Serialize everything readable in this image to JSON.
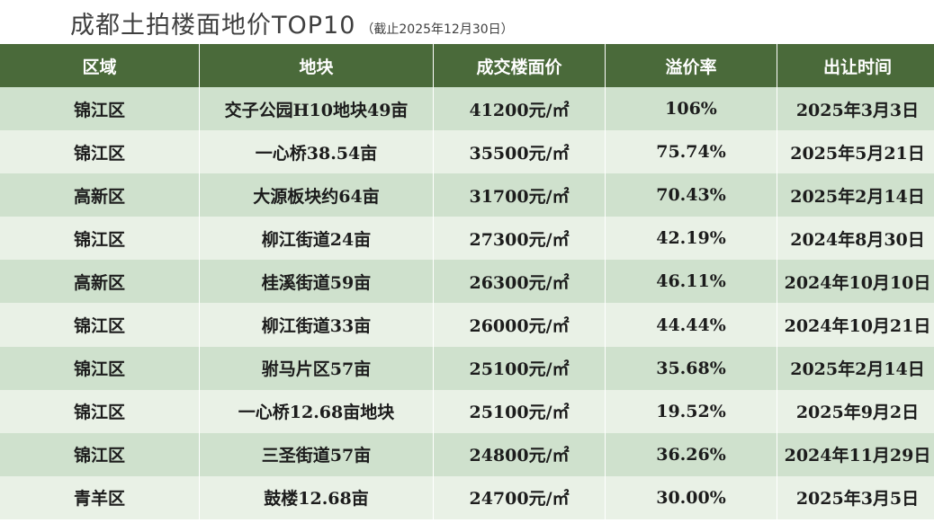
{
  "title": {
    "main": "成都土拍楼面地价TOP10",
    "sub": "（截止2025年12月30日）"
  },
  "colors": {
    "header_bg": "#4a6a3a",
    "row_odd_bg": "#cfe1cd",
    "row_even_bg": "#e9f1e6",
    "header_text": "#ffffff",
    "body_text": "#1c1c1c"
  },
  "chart_data": {
    "type": "table",
    "columns": [
      "区域",
      "地块",
      "成交楼面价",
      "溢价率",
      "出让时间"
    ],
    "rows": [
      [
        "锦江区",
        "交子公园H10地块49亩",
        "41200元/㎡",
        "106%",
        "2025年3月3日"
      ],
      [
        "锦江区",
        "一心桥38.54亩",
        "35500元/㎡",
        "75.74%",
        "2025年5月21日"
      ],
      [
        "高新区",
        "大源板块约64亩",
        "31700元/㎡",
        "70.43%",
        "2025年2月14日"
      ],
      [
        "锦江区",
        "柳江街道24亩",
        "27300元/㎡",
        "42.19%",
        "2024年8月30日"
      ],
      [
        "高新区",
        "桂溪街道59亩",
        "26300元/㎡",
        "46.11%",
        "2024年10月10日"
      ],
      [
        "锦江区",
        "柳江街道33亩",
        "26000元/㎡",
        "44.44%",
        "2024年10月21日"
      ],
      [
        "锦江区",
        "驸马片区57亩",
        "25100元/㎡",
        "35.68%",
        "2025年2月14日"
      ],
      [
        "锦江区",
        "一心桥12.68亩地块",
        "25100元/㎡",
        "19.52%",
        "2025年9月2日"
      ],
      [
        "锦江区",
        "三圣街道57亩",
        "24800元/㎡",
        "36.26%",
        "2024年11月29日"
      ],
      [
        "青羊区",
        "鼓楼12.68亩",
        "24700元/㎡",
        "30.00%",
        "2025年3月5日"
      ]
    ]
  }
}
